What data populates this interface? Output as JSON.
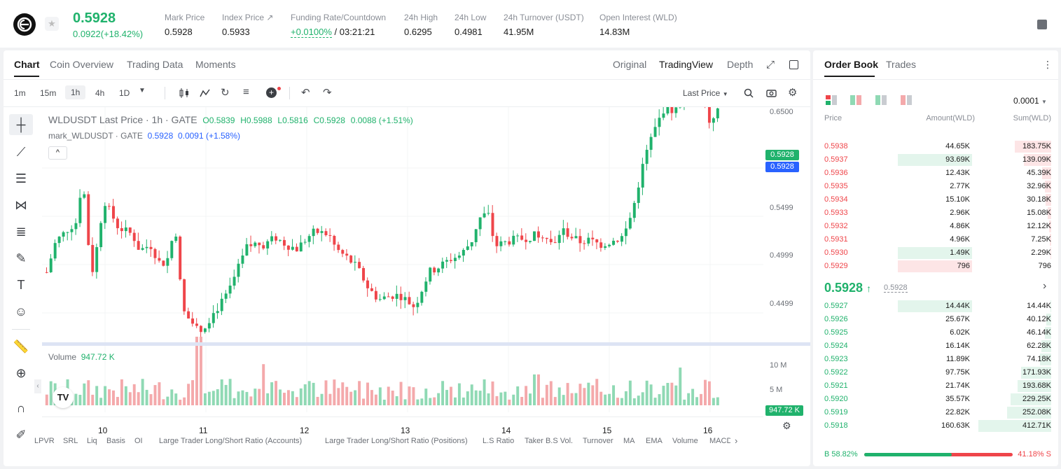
{
  "ticker": {
    "last_price": "0.5928",
    "change": "0.0922(+18.42%)",
    "stats": [
      {
        "label": "Mark Price",
        "value": "0.5928"
      },
      {
        "label": "Index Price ↗",
        "value": "0.5933"
      },
      {
        "label": "Funding Rate/Countdown",
        "value": "+0.0100%",
        "value2": "/ 03:21:21"
      },
      {
        "label": "24h High",
        "value": "0.6295"
      },
      {
        "label": "24h Low",
        "value": "0.4981"
      },
      {
        "label": "24h Turnover (USDT)",
        "value": "41.95M"
      },
      {
        "label": "Open Interest (WLD)",
        "value": "14.83M"
      }
    ]
  },
  "chart_tabs": [
    "Chart",
    "Coin Overview",
    "Trading Data",
    "Moments"
  ],
  "view_tabs": [
    "Original",
    "TradingView",
    "Depth"
  ],
  "timeframes": [
    "1m",
    "15m",
    "1h",
    "4h",
    "1D"
  ],
  "last_price_select": "Last Price",
  "legend": {
    "symbol": "WLDUSDT Last Price · 1h · GATE",
    "o": "O0.5839",
    "h": "H0.5988",
    "l": "L0.5816",
    "c": "C0.5928",
    "chg": "0.0088 (+1.51%)",
    "mark_name": "mark_WLDUSDT · GATE",
    "mark_vals": "0.5928  0.0091 (+1.58%)"
  },
  "volume_label": "Volume",
  "volume_value": "947.72 K",
  "price_axis": [
    "0.6500",
    "0.5499",
    "0.4999",
    "0.4499"
  ],
  "price_tags": {
    "last": "0.5928",
    "mark": "0.5928",
    "volume": "947.72 K"
  },
  "volume_axis": [
    "10 M",
    "5 M"
  ],
  "x_axis": [
    "10",
    "11",
    "12",
    "13",
    "14",
    "15",
    "16"
  ],
  "bottom_indicators": [
    "LPVR",
    "SRL",
    "Liq",
    "Basis",
    "OI",
    "Large Trader Long/Short Ratio (Accounts)",
    "Large Trader Long/Short Ratio (Positions)",
    "L.S Ratio",
    "Taker B.S Vol.",
    "Turnover",
    "MA",
    "EMA",
    "Volume",
    "MACD"
  ],
  "orderbook": {
    "tabs": [
      "Order Book",
      "Trades"
    ],
    "precision": "0.0001",
    "headers": [
      "Price",
      "Amount(WLD)",
      "Sum(WLD)"
    ],
    "asks": [
      {
        "p": "0.5938",
        "a": "44.65K",
        "s": "183.75K",
        "af": 0,
        "sf": 0.45
      },
      {
        "p": "0.5937",
        "a": "93.69K",
        "s": "139.09K",
        "af": 0.9,
        "sf": 0.34
      },
      {
        "p": "0.5936",
        "a": "12.43K",
        "s": "45.39K",
        "af": 0,
        "sf": 0.11
      },
      {
        "p": "0.5935",
        "a": "2.77K",
        "s": "32.96K",
        "af": 0,
        "sf": 0.08
      },
      {
        "p": "0.5934",
        "a": "15.10K",
        "s": "30.18K",
        "af": 0,
        "sf": 0.07
      },
      {
        "p": "0.5933",
        "a": "2.96K",
        "s": "15.08K",
        "af": 0,
        "sf": 0.04
      },
      {
        "p": "0.5932",
        "a": "4.86K",
        "s": "12.12K",
        "af": 0,
        "sf": 0.03
      },
      {
        "p": "0.5931",
        "a": "4.96K",
        "s": "7.25K",
        "af": 0,
        "sf": 0.02
      },
      {
        "p": "0.5930",
        "a": "1.49K",
        "s": "2.29K",
        "af": 0.9,
        "sf": 0.01
      },
      {
        "p": "0.5929",
        "a": "796",
        "s": "796",
        "af": 0.9,
        "sf": 0.0
      }
    ],
    "mid_price": "0.5928",
    "mid_mark": "0.5928",
    "bids": [
      {
        "p": "0.5927",
        "a": "14.44K",
        "s": "14.44K",
        "af": 0.9,
        "sf": 0.01
      },
      {
        "p": "0.5926",
        "a": "25.67K",
        "s": "40.12K",
        "af": 0,
        "sf": 0.06
      },
      {
        "p": "0.5925",
        "a": "6.02K",
        "s": "46.14K",
        "af": 0,
        "sf": 0.08
      },
      {
        "p": "0.5924",
        "a": "16.14K",
        "s": "62.28K",
        "af": 0,
        "sf": 0.12
      },
      {
        "p": "0.5923",
        "a": "11.89K",
        "s": "74.18K",
        "af": 0,
        "sf": 0.14
      },
      {
        "p": "0.5922",
        "a": "97.75K",
        "s": "171.93K",
        "af": 0,
        "sf": 0.37
      },
      {
        "p": "0.5921",
        "a": "21.74K",
        "s": "193.68K",
        "af": 0,
        "sf": 0.42
      },
      {
        "p": "0.5920",
        "a": "35.57K",
        "s": "229.25K",
        "af": 0,
        "sf": 0.5
      },
      {
        "p": "0.5919",
        "a": "22.82K",
        "s": "252.08K",
        "af": 0,
        "sf": 0.55
      },
      {
        "p": "0.5918",
        "a": "160.63K",
        "s": "412.71K",
        "af": 0,
        "sf": 0.9
      }
    ],
    "buy_ratio": "B 58.82%",
    "sell_ratio": "41.18% S",
    "buy_pct": 58.82
  },
  "colors": {
    "up": "#20b26c",
    "down": "#ef454a",
    "mark": "#2962ff"
  }
}
